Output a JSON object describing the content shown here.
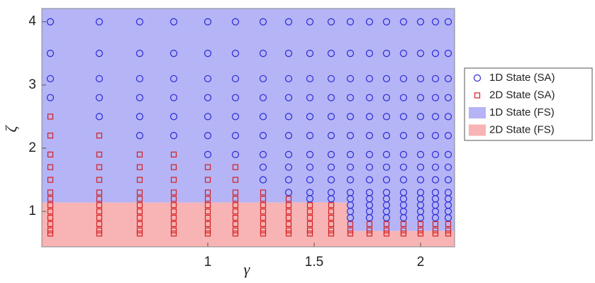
{
  "chart_data": {
    "type": "scatter",
    "xlabel": "γ",
    "ylabel": "ζ",
    "xlim": [
      0.22,
      2.16
    ],
    "ylim": [
      0.44,
      4.21
    ],
    "xticks": [
      1,
      1.5,
      2
    ],
    "yticks": [
      1,
      2,
      3,
      4
    ],
    "regions": [
      {
        "name": "1D State (FS)",
        "color": "#b4b4f6",
        "x": [
          0.22,
          2.16,
          2.16,
          1.66,
          1.66,
          0.22
        ],
        "y": [
          4.21,
          4.21,
          0.69,
          0.69,
          1.14,
          1.14
        ]
      },
      {
        "name": "2D State (FS)",
        "color": "#f8b4b4",
        "x": [
          0.22,
          1.66,
          1.66,
          2.16,
          2.16,
          0.22
        ],
        "y": [
          1.14,
          1.14,
          0.69,
          0.69,
          0.44,
          0.44
        ]
      }
    ],
    "series": [
      {
        "name": "1D State (SA)",
        "marker": "circle",
        "color": "#2a2ad6",
        "x": [
          0.26,
          0.26,
          0.26,
          0.26,
          0.49,
          0.49,
          0.49,
          0.49,
          0.49,
          0.68,
          0.68,
          0.68,
          0.68,
          0.68,
          0.68,
          0.84,
          0.84,
          0.84,
          0.84,
          0.84,
          0.84,
          1.0,
          1.0,
          1.0,
          1.0,
          1.0,
          1.0,
          1.0,
          1.13,
          1.13,
          1.13,
          1.13,
          1.13,
          1.13,
          1.13,
          1.26,
          1.26,
          1.26,
          1.26,
          1.26,
          1.26,
          1.26,
          1.26,
          1.26,
          1.38,
          1.38,
          1.38,
          1.38,
          1.38,
          1.38,
          1.38,
          1.38,
          1.38,
          1.38,
          1.48,
          1.48,
          1.48,
          1.48,
          1.48,
          1.48,
          1.48,
          1.48,
          1.48,
          1.48,
          1.48,
          1.58,
          1.58,
          1.58,
          1.58,
          1.58,
          1.58,
          1.58,
          1.58,
          1.58,
          1.58,
          1.58,
          1.67,
          1.67,
          1.67,
          1.67,
          1.67,
          1.67,
          1.67,
          1.67,
          1.67,
          1.67,
          1.67,
          1.67,
          1.67,
          1.67,
          1.76,
          1.76,
          1.76,
          1.76,
          1.76,
          1.76,
          1.76,
          1.76,
          1.76,
          1.76,
          1.76,
          1.76,
          1.76,
          1.76,
          1.84,
          1.84,
          1.84,
          1.84,
          1.84,
          1.84,
          1.84,
          1.84,
          1.84,
          1.84,
          1.84,
          1.84,
          1.84,
          1.84,
          1.92,
          1.92,
          1.92,
          1.92,
          1.92,
          1.92,
          1.92,
          1.92,
          1.92,
          1.92,
          1.92,
          1.92,
          1.92,
          1.92,
          2.0,
          2.0,
          2.0,
          2.0,
          2.0,
          2.0,
          2.0,
          2.0,
          2.0,
          2.0,
          2.0,
          2.0,
          2.0,
          2.0,
          2.07,
          2.07,
          2.07,
          2.07,
          2.07,
          2.07,
          2.07,
          2.07,
          2.07,
          2.07,
          2.07,
          2.07,
          2.07,
          2.07,
          2.13,
          2.13,
          2.13,
          2.13,
          2.13,
          2.13,
          2.13,
          2.13,
          2.13,
          2.13,
          2.13,
          2.13,
          2.13,
          2.13
        ],
        "y": [
          4,
          3.5,
          3.1,
          2.8,
          4,
          3.5,
          3.1,
          2.8,
          2.5,
          4,
          3.5,
          3.1,
          2.8,
          2.5,
          2.2,
          4,
          3.5,
          3.1,
          2.8,
          2.5,
          2.2,
          4,
          3.5,
          3.1,
          2.8,
          2.5,
          2.2,
          1.9,
          4,
          3.5,
          3.1,
          2.8,
          2.5,
          2.2,
          1.9,
          4,
          3.5,
          3.1,
          2.8,
          2.5,
          2.2,
          1.9,
          1.7,
          1.5,
          4,
          3.5,
          3.1,
          2.8,
          2.5,
          2.2,
          1.9,
          1.7,
          1.5,
          1.3,
          4,
          3.5,
          3.1,
          2.8,
          2.5,
          2.2,
          1.9,
          1.7,
          1.5,
          1.3,
          1.2,
          4,
          3.5,
          3.1,
          2.8,
          2.5,
          2.2,
          1.9,
          1.7,
          1.5,
          1.3,
          1.2,
          4,
          3.5,
          3.1,
          2.8,
          2.5,
          2.2,
          1.9,
          1.7,
          1.5,
          1.3,
          1.2,
          1.1,
          1.0,
          0.9,
          4,
          3.5,
          3.1,
          2.8,
          2.5,
          2.2,
          1.9,
          1.7,
          1.5,
          1.3,
          1.2,
          1.1,
          1.0,
          0.9,
          4,
          3.5,
          3.1,
          2.8,
          2.5,
          2.2,
          1.9,
          1.7,
          1.5,
          1.3,
          1.2,
          1.1,
          1.0,
          0.9,
          4,
          3.5,
          3.1,
          2.8,
          2.5,
          2.2,
          1.9,
          1.7,
          1.5,
          1.3,
          1.2,
          1.1,
          1.0,
          0.9,
          4,
          3.5,
          3.1,
          2.8,
          2.5,
          2.2,
          1.9,
          1.7,
          1.5,
          1.3,
          1.2,
          1.1,
          1.0,
          0.9,
          4,
          3.5,
          3.1,
          2.8,
          2.5,
          2.2,
          1.9,
          1.7,
          1.5,
          1.3,
          1.2,
          1.1,
          1.0,
          0.9,
          4,
          3.5,
          3.1,
          2.8,
          2.5,
          2.2,
          1.9,
          1.7,
          1.5,
          1.3,
          1.2,
          1.1,
          1.0,
          0.9
        ]
      },
      {
        "name": "2D State (SA)",
        "marker": "square",
        "color": "#d42020",
        "x": [
          0.26,
          0.26,
          0.26,
          0.26,
          0.26,
          0.26,
          0.26,
          0.26,
          0.26,
          0.26,
          0.26,
          0.26,
          0.26,
          0.49,
          0.49,
          0.49,
          0.49,
          0.49,
          0.49,
          0.49,
          0.49,
          0.49,
          0.49,
          0.49,
          0.49,
          0.68,
          0.68,
          0.68,
          0.68,
          0.68,
          0.68,
          0.68,
          0.68,
          0.68,
          0.68,
          0.68,
          0.84,
          0.84,
          0.84,
          0.84,
          0.84,
          0.84,
          0.84,
          0.84,
          0.84,
          0.84,
          0.84,
          1.0,
          1.0,
          1.0,
          1.0,
          1.0,
          1.0,
          1.0,
          1.0,
          1.0,
          1.0,
          1.13,
          1.13,
          1.13,
          1.13,
          1.13,
          1.13,
          1.13,
          1.13,
          1.13,
          1.13,
          1.26,
          1.26,
          1.26,
          1.26,
          1.26,
          1.26,
          1.26,
          1.26,
          1.38,
          1.38,
          1.38,
          1.38,
          1.38,
          1.38,
          1.38,
          1.48,
          1.48,
          1.48,
          1.48,
          1.48,
          1.48,
          1.58,
          1.58,
          1.58,
          1.58,
          1.58,
          1.58,
          1.67,
          1.67,
          1.67,
          1.76,
          1.76,
          1.76,
          1.84,
          1.84,
          1.84,
          1.92,
          1.92,
          1.92,
          2.0,
          2.0,
          2.0,
          2.07,
          2.07,
          2.07,
          2.13,
          2.13,
          2.13
        ],
        "y": [
          2.5,
          2.2,
          1.9,
          1.7,
          1.5,
          1.3,
          1.2,
          1.1,
          1.0,
          0.9,
          0.8,
          0.7,
          0.65,
          2.2,
          1.9,
          1.7,
          1.5,
          1.3,
          1.2,
          1.1,
          1.0,
          0.9,
          0.8,
          0.7,
          0.65,
          1.9,
          1.7,
          1.5,
          1.3,
          1.2,
          1.1,
          1.0,
          0.9,
          0.8,
          0.7,
          0.65,
          1.9,
          1.7,
          1.5,
          1.3,
          1.2,
          1.1,
          1.0,
          0.9,
          0.8,
          0.7,
          0.65,
          1.7,
          1.5,
          1.3,
          1.2,
          1.1,
          1.0,
          0.9,
          0.8,
          0.7,
          0.65,
          1.7,
          1.5,
          1.3,
          1.2,
          1.1,
          1.0,
          0.9,
          0.8,
          0.7,
          0.65,
          1.3,
          1.2,
          1.1,
          1.0,
          0.9,
          0.8,
          0.7,
          0.65,
          1.2,
          1.1,
          1.0,
          0.9,
          0.8,
          0.7,
          0.65,
          1.1,
          1.0,
          0.9,
          0.8,
          0.7,
          0.65,
          1.1,
          1.0,
          0.9,
          0.8,
          0.7,
          0.65,
          0.8,
          0.7,
          0.65,
          0.8,
          0.7,
          0.65,
          0.8,
          0.7,
          0.65,
          0.8,
          0.7,
          0.65,
          0.8,
          0.7,
          0.65,
          0.8,
          0.7,
          0.65,
          0.8,
          0.7,
          0.65
        ]
      }
    ]
  }
}
